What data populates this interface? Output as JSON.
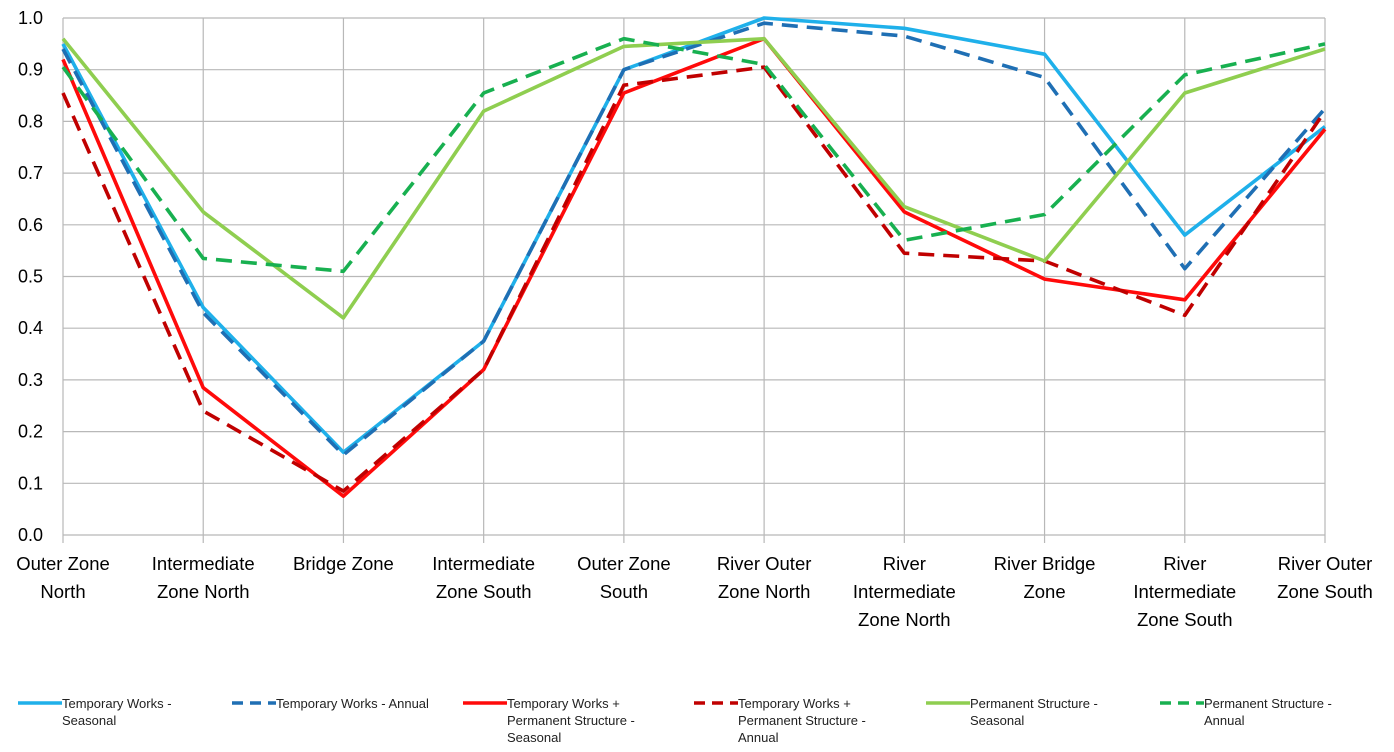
{
  "chart_data": {
    "type": "line",
    "title": "",
    "xlabel": "",
    "ylabel": "",
    "ylim": [
      0,
      1
    ],
    "yticks": [
      "0.0",
      "0.1",
      "0.2",
      "0.3",
      "0.4",
      "0.5",
      "0.6",
      "0.7",
      "0.8",
      "0.9",
      "1.0"
    ],
    "grid": true,
    "legend_position": "bottom",
    "categories": [
      [
        "Outer Zone",
        "North"
      ],
      [
        "Intermediate",
        "Zone North"
      ],
      [
        "Bridge Zone"
      ],
      [
        "Intermediate",
        "Zone South"
      ],
      [
        "Outer Zone",
        "South"
      ],
      [
        "River Outer",
        "Zone North"
      ],
      [
        "River",
        "Intermediate",
        "Zone North"
      ],
      [
        "River Bridge",
        "Zone"
      ],
      [
        "River",
        "Intermediate",
        "Zone South"
      ],
      [
        "River Outer",
        "Zone South"
      ]
    ],
    "series": [
      {
        "name": "Temporary Works - Seasonal",
        "legend_lines": [
          "Temporary Works -",
          "Seasonal"
        ],
        "color": "#1fb0ea",
        "dash": "solid",
        "values": [
          0.95,
          0.44,
          0.16,
          0.375,
          0.9,
          1.0,
          0.98,
          0.93,
          0.58,
          0.79
        ]
      },
      {
        "name": "Temporary Works - Annual",
        "legend_lines": [
          "Temporary Works - Annual"
        ],
        "color": "#1f6fb4",
        "dash": "dashed",
        "values": [
          0.94,
          0.43,
          0.155,
          0.375,
          0.9,
          0.99,
          0.965,
          0.885,
          0.515,
          0.825
        ]
      },
      {
        "name": "Temporary Works + Permanent Structure - Seasonal",
        "legend_lines": [
          "Temporary Works +",
          "Permanent Structure -",
          "Seasonal"
        ],
        "color": "#ff0a0a",
        "dash": "solid",
        "values": [
          0.92,
          0.285,
          0.075,
          0.32,
          0.855,
          0.96,
          0.625,
          0.495,
          0.455,
          0.785
        ]
      },
      {
        "name": "Temporary Works + Permanent Structure - Annual",
        "legend_lines": [
          "Temporary Works +",
          "Permanent Structure -",
          "Annual"
        ],
        "color": "#c00000",
        "dash": "dashed",
        "values": [
          0.855,
          0.24,
          0.085,
          0.32,
          0.87,
          0.905,
          0.545,
          0.53,
          0.425,
          0.82
        ]
      },
      {
        "name": "Permanent Structure - Seasonal",
        "legend_lines": [
          "Permanent Structure -",
          "Seasonal"
        ],
        "color": "#8fce50",
        "dash": "solid",
        "values": [
          0.96,
          0.625,
          0.42,
          0.82,
          0.945,
          0.96,
          0.635,
          0.53,
          0.855,
          0.94
        ]
      },
      {
        "name": "Permanent Structure - Annual",
        "legend_lines": [
          "Permanent Structure -",
          "Annual"
        ],
        "color": "#18b050",
        "dash": "dashed",
        "values": [
          0.905,
          0.535,
          0.51,
          0.855,
          0.96,
          0.91,
          0.57,
          0.62,
          0.89,
          0.95
        ]
      }
    ]
  }
}
